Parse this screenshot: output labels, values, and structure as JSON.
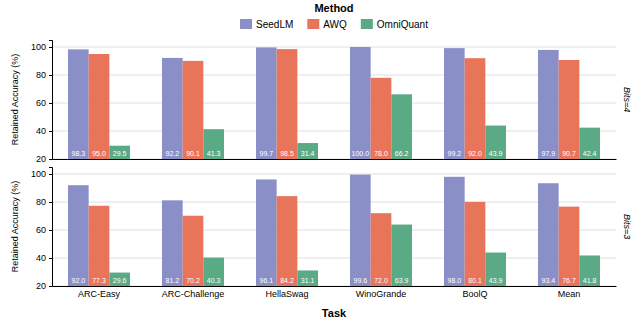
{
  "chart_data": [
    {
      "type": "bar",
      "title": "Bits=4",
      "categories": [
        "ARC-Easy",
        "ARC-Challenge",
        "HellaSwag",
        "WinoGrande",
        "BoolQ",
        "Mean"
      ],
      "series": [
        {
          "name": "SeedLM",
          "color": "#8b8fc7",
          "values": [
            98.3,
            92.2,
            99.7,
            100.0,
            99.2,
            97.9
          ],
          "value_labels": [
            "98.3",
            "92.2",
            "99.7",
            "100.0",
            "99.2",
            "97.9"
          ]
        },
        {
          "name": "AWQ",
          "color": "#e8745a",
          "values": [
            95.0,
            90.1,
            98.5,
            78.0,
            92.0,
            90.7
          ],
          "value_labels": [
            "95.0",
            "90.1",
            "98.5",
            "78.0",
            "92.0",
            "90.7"
          ]
        },
        {
          "name": "OmniQuant",
          "color": "#5aaa85",
          "values": [
            29.5,
            41.3,
            31.4,
            66.2,
            43.9,
            42.4
          ],
          "value_labels": [
            "29.5",
            "41.3",
            "31.4",
            "66.2",
            "43.9",
            "42.4"
          ]
        }
      ],
      "ylabel": "Retained Accuracy (%)",
      "ylim": [
        20,
        105
      ],
      "yticks": [
        20,
        40,
        60,
        80,
        100
      ],
      "grid": true,
      "data_labels": true,
      "tick_labels": "y",
      "legend": "top",
      "legend_title": "Method"
    },
    {
      "type": "bar",
      "title": "Bits=3",
      "categories": [
        "ARC-Easy",
        "ARC-Challenge",
        "HellaSwag",
        "WinoGrande",
        "BoolQ",
        "Mean"
      ],
      "series": [
        {
          "name": "SeedLM",
          "color": "#8b8fc7",
          "values": [
            92.0,
            81.2,
            96.1,
            99.6,
            98.0,
            93.4
          ],
          "value_labels": [
            "92.0",
            "81.2",
            "96.1",
            "99.6",
            "98.0",
            "93.4"
          ]
        },
        {
          "name": "AWQ",
          "color": "#e8745a",
          "values": [
            77.3,
            70.2,
            84.2,
            72.0,
            80.1,
            76.7
          ],
          "value_labels": [
            "77.3",
            "70.2",
            "84.2",
            "72.0",
            "80.1",
            "76.7"
          ]
        },
        {
          "name": "OmniQuant",
          "color": "#5aaa85",
          "values": [
            29.6,
            40.3,
            31.1,
            63.9,
            43.9,
            41.8
          ],
          "value_labels": [
            "29.6",
            "40.3",
            "31.1",
            "63.9",
            "43.9",
            "41.8"
          ]
        }
      ],
      "xlabel": "Task",
      "ylabel": "Retained Accuracy (%)",
      "ylim": [
        20,
        105
      ],
      "yticks": [
        20,
        40,
        60,
        80,
        100
      ],
      "grid": true,
      "data_labels": true
    }
  ]
}
